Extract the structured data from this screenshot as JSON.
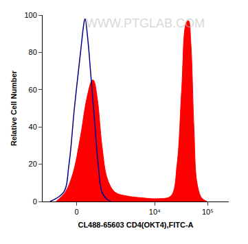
{
  "chart_data": {
    "type": "line",
    "x_label": "CL488-65603 CD4(OKT4),FITC-A",
    "y_label": "Relative Cell Number",
    "annotations": [
      "WWW.PTGLAB.COM"
    ],
    "xlim": [
      -1400,
      250000
    ],
    "xticks": [
      0,
      {
        "value": 10000,
        "label": "10⁴"
      },
      {
        "value": 100000,
        "label": "10⁵"
      }
    ],
    "ylim": [
      0,
      100
    ],
    "yticks": [
      0,
      20,
      40,
      60,
      80,
      100
    ],
    "grid": false,
    "series": [
      {
        "type": "area",
        "color": "#ff0000",
        "x": [
          -688,
          -349,
          -112,
          112,
          300,
          480,
          537,
          688,
          895,
          1190,
          1715,
          2890,
          5680,
          11080,
          20200,
          26400,
          32200,
          39400,
          43500,
          48100,
          54900,
          62800,
          76600,
          97000
        ],
        "values": [
          0,
          5,
          15,
          35,
          55,
          65,
          65,
          55,
          30,
          12,
          5,
          3,
          2,
          1.5,
          3,
          20,
          60,
          96,
          97,
          85,
          40,
          10,
          2,
          0
        ]
      },
      {
        "type": "line",
        "color": "#00008b",
        "x": [
          -965,
          -400,
          -228,
          -67,
          112,
          228,
          251,
          349,
          427,
          565,
          720,
          895,
          1190,
          1427
        ],
        "values": [
          0,
          5,
          20,
          50,
          80,
          97,
          98,
          85,
          70,
          45,
          20,
          5,
          1,
          0
        ]
      }
    ]
  }
}
